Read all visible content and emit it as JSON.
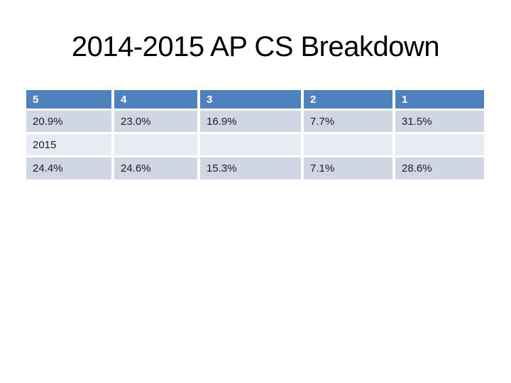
{
  "slide": {
    "title": "2014-2015 AP CS Breakdown",
    "background_color": "#ffffff",
    "title_color": "#000000"
  },
  "colors": {
    "table_header_bg": "#4f81bd",
    "table_header_text": "#ffffff",
    "table_band_dark": "#d0d6e4",
    "table_band_light": "#e9ebf3",
    "table_body_text": "#1c1c1c"
  },
  "table": {
    "header": [
      "5",
      "4",
      "3",
      "2",
      "1"
    ],
    "rows": [
      {
        "cells": [
          "20.9%",
          "23.0%",
          "16.9%",
          "7.7%",
          "31.5%"
        ]
      },
      {
        "cells": [
          "2015",
          "",
          "",
          "",
          ""
        ]
      },
      {
        "cells": [
          "24.4%",
          "24.6%",
          "15.3%",
          "7.1%",
          "28.6%"
        ]
      }
    ]
  },
  "chart_data": {
    "type": "table",
    "title": "2014-2015 AP CS Breakdown",
    "columns": [
      "5",
      "4",
      "3",
      "2",
      "1"
    ],
    "rows": [
      [
        "20.9%",
        "23.0%",
        "16.9%",
        "7.7%",
        "31.5%"
      ],
      [
        "2015",
        "",
        "",
        "",
        ""
      ],
      [
        "24.4%",
        "24.6%",
        "15.3%",
        "7.1%",
        "28.6%"
      ]
    ]
  }
}
